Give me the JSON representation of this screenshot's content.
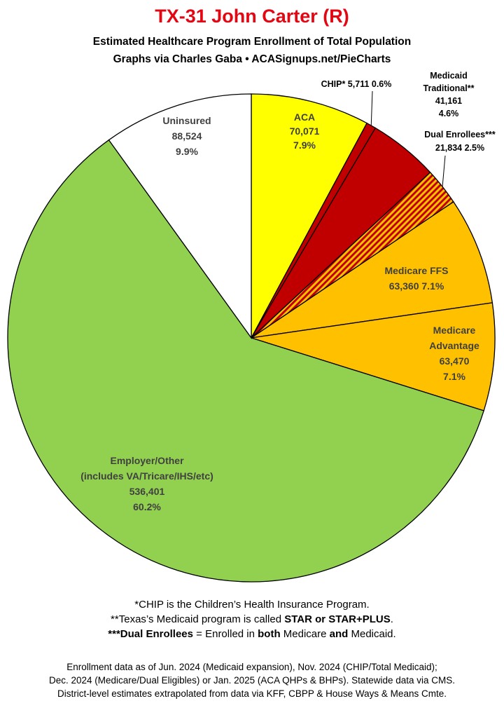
{
  "title": "TX-31 John Carter (R)",
  "subtitle_line1": "Estimated Healthcare Program Enrollment of Total Population",
  "subtitle_line2": "Graphs via Charles Gaba  •  ACASignups.net/PieCharts",
  "chart_data": {
    "type": "pie",
    "slices": [
      {
        "label": "ACA",
        "value": 70071,
        "value_text": "70,071",
        "percent_text": "7.9%",
        "color": "#ffff00",
        "pattern": "none"
      },
      {
        "label": "CHIP*",
        "value": 5711,
        "value_text": "5,711",
        "percent_text": "0.6%",
        "color": "#c00000",
        "pattern": "none"
      },
      {
        "label": "Medicaid Traditional**",
        "value": 41161,
        "value_text": "41,161",
        "percent_text": "4.6%",
        "color": "#c00000",
        "pattern": "none"
      },
      {
        "label": "Dual Enrollees***",
        "value": 21834,
        "value_text": "21,834",
        "percent_text": "2.5%",
        "color": "#ffc000",
        "pattern": "stripes-red"
      },
      {
        "label": "Medicare FFS",
        "value": 63360,
        "value_text": "63,360",
        "percent_text": "7.1%",
        "color": "#ffc000",
        "pattern": "none"
      },
      {
        "label": "Medicare Advantage",
        "value": 63470,
        "value_text": "63,470",
        "percent_text": "7.1%",
        "color": "#ffc000",
        "pattern": "none"
      },
      {
        "label": "Employer/Other",
        "sublabel": "(includes VA/Tricare/IHS/etc)",
        "value": 536401,
        "value_text": "536,401",
        "percent_text": "60.2%",
        "color": "#92d050",
        "pattern": "none"
      },
      {
        "label": "Uninsured",
        "value": 88524,
        "value_text": "88,524",
        "percent_text": "9.9%",
        "color": "#ffffff",
        "pattern": "none"
      }
    ],
    "start_angle_deg": 0,
    "direction": "clockwise"
  },
  "notes": {
    "line1": "*CHIP is the Children’s Health Insurance Program.",
    "line2_prefix": "**Texas’s Medicaid program is called ",
    "line2_bold": "STAR or STAR+PLUS",
    "line2_suffix": ".",
    "line3_bold1": "***Dual Enrollees",
    "line3_mid1": " = Enrolled in ",
    "line3_bold2": "both",
    "line3_mid2": " Medicare ",
    "line3_bold3": "and",
    "line3_end": " Medicaid."
  },
  "footer": {
    "line1": "Enrollment data as of Jun. 2024 (Medicaid expansion), Nov. 2024 (CHIP/Total Medicaid);",
    "line2": "Dec. 2024 (Medicare/Dual Eligibles) or Jan. 2025 (ACA QHPs & BHPs). Statewide data via CMS.",
    "line3": "District-level estimates extrapolated from data via KFF, CBPP & House Ways & Means Cmte."
  }
}
